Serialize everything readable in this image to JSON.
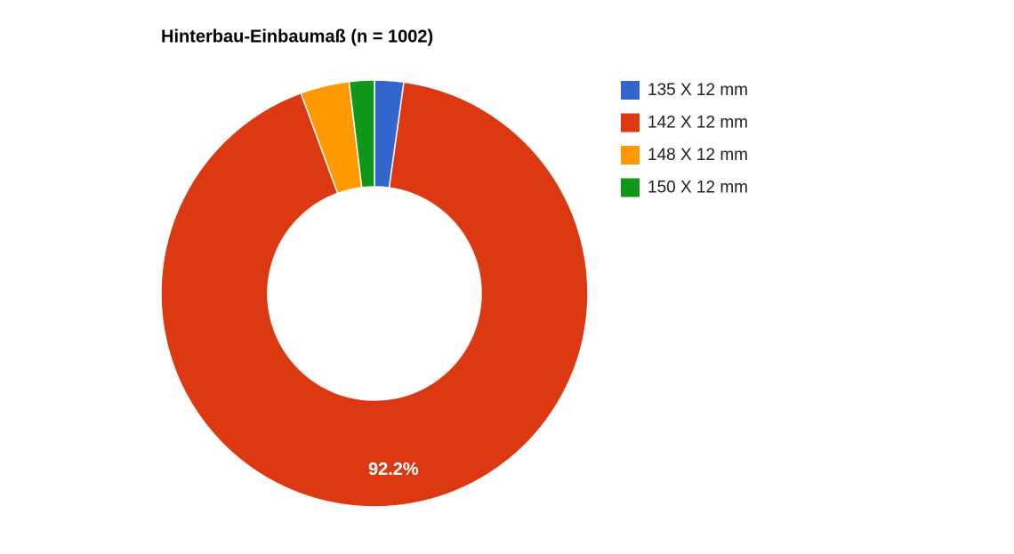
{
  "chart_data": {
    "type": "donut",
    "title": "Hinterbau-Einbaumaß (n = 1002)",
    "categories": [
      "135 X 12 mm",
      "142 X 12 mm",
      "148 X 12 mm",
      "150 X 12 mm"
    ],
    "values": [
      2.2,
      92.2,
      3.7,
      1.9
    ],
    "value_labels": [
      null,
      "92.2%",
      null,
      null
    ],
    "colors": [
      "#3366cc",
      "#dc3912",
      "#ff9900",
      "#109618"
    ],
    "legend": "right"
  }
}
